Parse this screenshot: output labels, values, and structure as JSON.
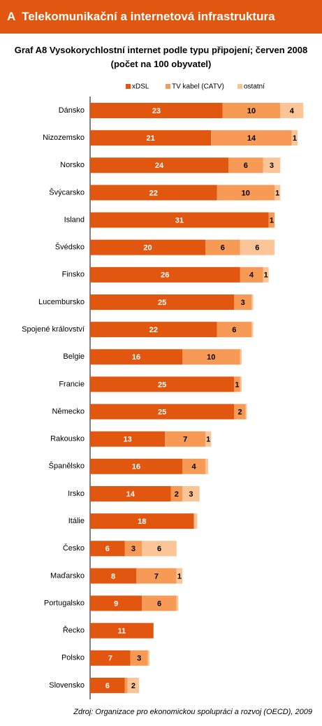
{
  "header": {
    "title": "A  Telekomunikační a internetová infrastruktura"
  },
  "chart_data": {
    "type": "stacked-barh",
    "title": "Graf A8 Vysokorychlostní internet podle typu připojení; červen 2008 (počet na 100 obyvatel)",
    "categories": [
      "Dánsko",
      "Nizozemsko",
      "Norsko",
      "Švýcarsko",
      "Island",
      "Švédsko",
      "Finsko",
      "Lucembursko",
      "Spojené království",
      "Belgie",
      "Francie",
      "Německo",
      "Rakousko",
      "Španělsko",
      "Irsko",
      "Itálie",
      "Česko",
      "Maďarsko",
      "Portugalsko",
      "Řecko",
      "Polsko",
      "Slovensko"
    ],
    "series": [
      {
        "name": "xDSL",
        "color": "#e2570f",
        "values": [
          23,
          21,
          24,
          22,
          31,
          20,
          26,
          25,
          22,
          16,
          25,
          25,
          13,
          16,
          14,
          18,
          6,
          8,
          9,
          11,
          7,
          6
        ]
      },
      {
        "name": "TV kabel (CATV)",
        "color": "#f79a55",
        "values": [
          10,
          14,
          6,
          10,
          1,
          6,
          4,
          3,
          6,
          10,
          1,
          2,
          7,
          4,
          2,
          0,
          3,
          7,
          6,
          0,
          3,
          0.5
        ]
      },
      {
        "name": "ostatní",
        "color": "#fbc597",
        "values": [
          4,
          1,
          3,
          1,
          0,
          6,
          1,
          0.3,
          0.3,
          0.3,
          0.3,
          0.2,
          1,
          0.5,
          3,
          0.6,
          6,
          1,
          0.3,
          0,
          0.3,
          2
        ]
      }
    ],
    "source": "Zdroj: Organizace pro ekonomickou spolupráci a rozvoj (OECD), 2009"
  }
}
